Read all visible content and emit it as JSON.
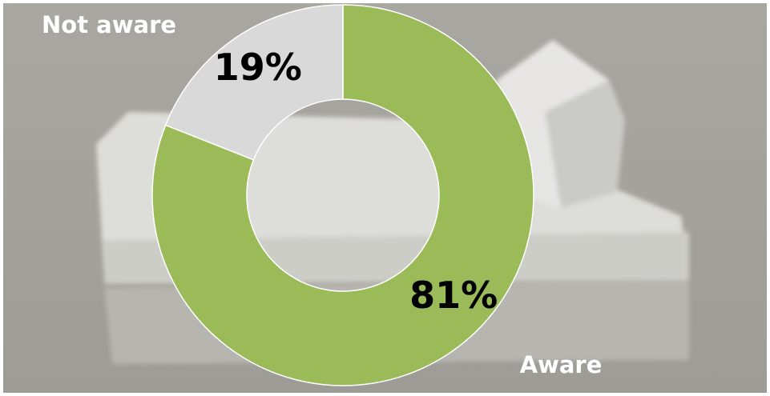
{
  "chart_data": {
    "type": "donut",
    "categories": [
      "Aware",
      "Not aware"
    ],
    "values": [
      81,
      19
    ],
    "value_labels": [
      "81%",
      "19%"
    ],
    "colors": [
      "#9bbb59",
      "#d9d9d9"
    ]
  }
}
